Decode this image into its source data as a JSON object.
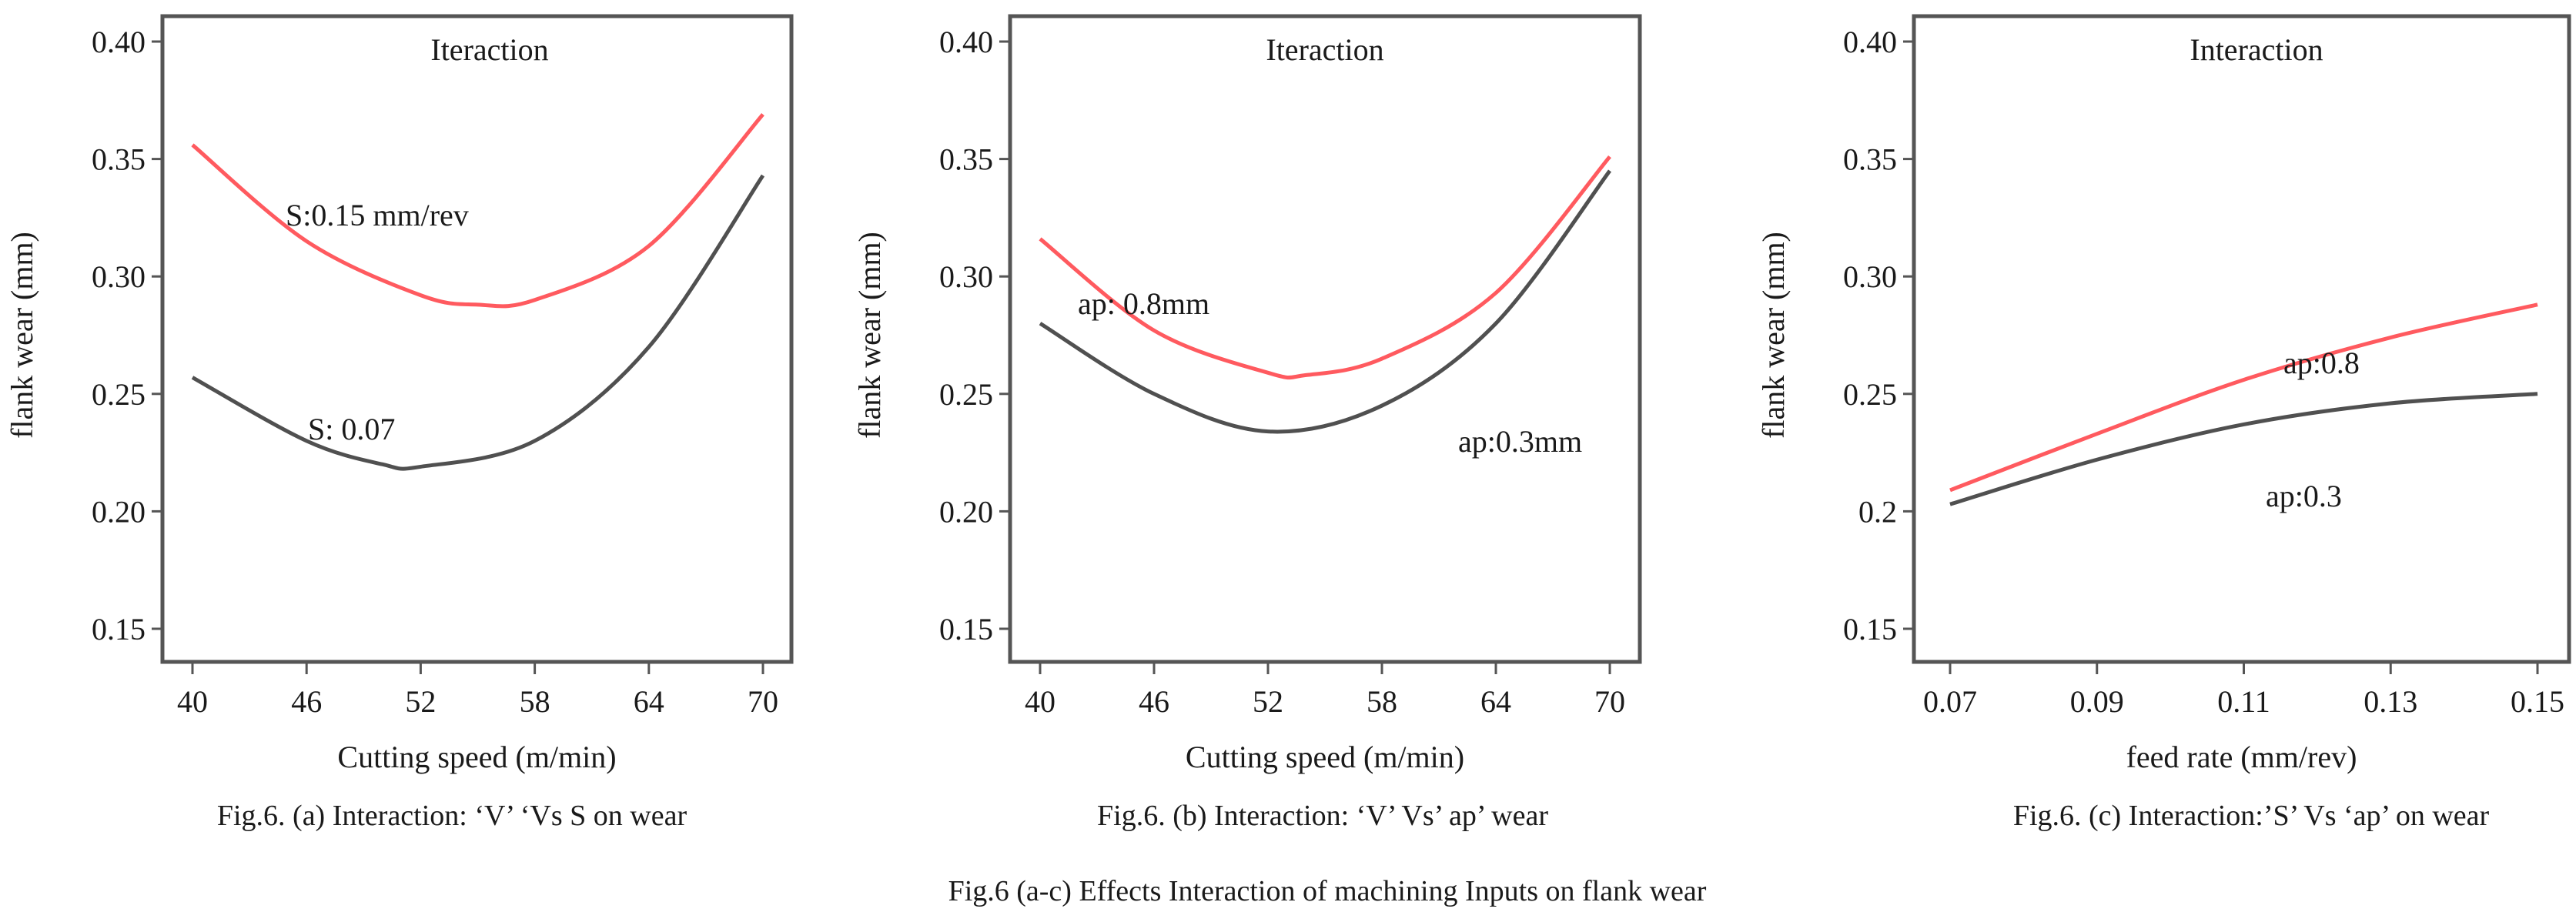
{
  "figure_caption": "Fig.6 (a-c) Effects Interaction of machining Inputs on flank wear",
  "colors": {
    "high": "#ff5a5f",
    "low": "#505050"
  },
  "chart_data": [
    {
      "type": "line",
      "title": "Iteraction",
      "caption": "Fig.6. (a) Interaction: ‘V’ ‘Vs S on wear",
      "xlabel": "Cutting speed (m/min)",
      "ylabel": "flank wear (mm)",
      "xlim": [
        40,
        70
      ],
      "ylim": [
        0.15,
        0.4
      ],
      "xticks": [
        "40",
        "46",
        "52",
        "58",
        "64",
        "70"
      ],
      "xtick_values": [
        40,
        46,
        52,
        58,
        64,
        70
      ],
      "yticks": [
        "0.15",
        "0.20",
        "0.25",
        "0.30",
        "0.35",
        "0.40"
      ],
      "ytick_values": [
        0.15,
        0.2,
        0.25,
        0.3,
        0.35,
        0.4
      ],
      "series": [
        {
          "name": "S:0.15 mm/rev",
          "color": "high",
          "x": [
            40,
            46,
            52,
            55,
            58,
            64,
            70
          ],
          "y": [
            0.356,
            0.315,
            0.292,
            0.288,
            0.29,
            0.313,
            0.369
          ]
        },
        {
          "name": "S: 0.07",
          "color": "low",
          "x": [
            40,
            46,
            50,
            52,
            58,
            64,
            70
          ],
          "y": [
            0.257,
            0.23,
            0.22,
            0.219,
            0.23,
            0.27,
            0.343
          ]
        }
      ]
    },
    {
      "type": "line",
      "title": "Iteraction",
      "caption": "Fig.6. (b) Interaction: ‘V’ Vs’ ap’ wear",
      "xlabel": "Cutting speed (m/min)",
      "ylabel": "flank wear (mm)",
      "xlim": [
        40,
        70
      ],
      "ylim": [
        0.15,
        0.4
      ],
      "xticks": [
        "40",
        "46",
        "52",
        "58",
        "64",
        "70"
      ],
      "xtick_values": [
        40,
        46,
        52,
        58,
        64,
        70
      ],
      "yticks": [
        "0.15",
        "0.20",
        "0.25",
        "0.30",
        "0.35",
        "0.40"
      ],
      "ytick_values": [
        0.15,
        0.2,
        0.25,
        0.3,
        0.35,
        0.4
      ],
      "series": [
        {
          "name": "ap: 0.8mm",
          "color": "high",
          "x": [
            40,
            46,
            52,
            54,
            58,
            64,
            70
          ],
          "y": [
            0.316,
            0.277,
            0.259,
            0.258,
            0.265,
            0.293,
            0.351
          ]
        },
        {
          "name": "ap:0.3mm",
          "color": "low",
          "x": [
            40,
            46,
            52,
            58,
            64,
            70
          ],
          "y": [
            0.28,
            0.25,
            0.234,
            0.245,
            0.28,
            0.345
          ]
        }
      ]
    },
    {
      "type": "line",
      "title": "Interaction",
      "caption": "Fig.6. (c) Interaction:’S’ Vs ‘ap’ on wear",
      "xlabel": "feed rate (mm/rev)",
      "ylabel": "flank wear (mm)",
      "xlim": [
        0.07,
        0.15
      ],
      "ylim": [
        0.15,
        0.4
      ],
      "xticks": [
        "0.07",
        "0.09",
        "0.11",
        "0.13",
        "0.15"
      ],
      "xtick_values": [
        0.07,
        0.09,
        0.11,
        0.13,
        0.15
      ],
      "yticks": [
        "0.15",
        "0.2",
        "0.25",
        "0.30",
        "0.35",
        "0.40"
      ],
      "ytick_values": [
        0.15,
        0.2,
        0.25,
        0.3,
        0.35,
        0.4
      ],
      "series": [
        {
          "name": "ap:0.8",
          "color": "high",
          "x": [
            0.07,
            0.09,
            0.11,
            0.13,
            0.15
          ],
          "y": [
            0.209,
            0.233,
            0.256,
            0.274,
            0.288
          ]
        },
        {
          "name": "ap:0.3",
          "color": "low",
          "x": [
            0.07,
            0.09,
            0.11,
            0.13,
            0.15
          ],
          "y": [
            0.203,
            0.222,
            0.237,
            0.246,
            0.25
          ]
        }
      ]
    }
  ]
}
